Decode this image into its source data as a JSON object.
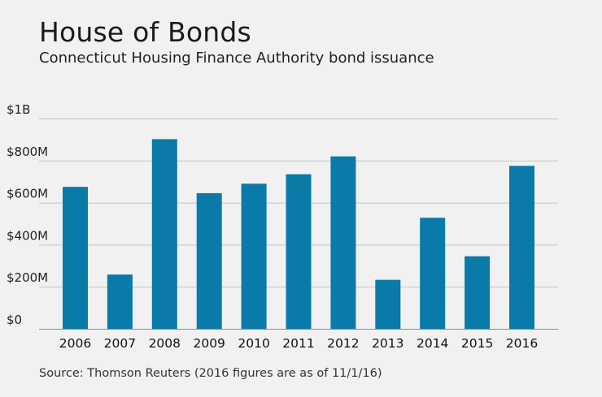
{
  "title": "House of Bonds",
  "subtitle": "Connecticut Housing Finance Authority bond issuance",
  "source": "Source: Thomson Reuters (2016 figures are as of 11/1/16)",
  "colors": {
    "bar": "#0a7aa8",
    "grid": "#c4c6c4",
    "axis": "#8a8c8a",
    "background": "#f0f1f0"
  },
  "chart_data": {
    "type": "bar",
    "categories": [
      "2006",
      "2007",
      "2008",
      "2009",
      "2010",
      "2011",
      "2012",
      "2013",
      "2014",
      "2015",
      "2016"
    ],
    "values": [
      675,
      258,
      902,
      645,
      690,
      735,
      820,
      233,
      528,
      345,
      775
    ],
    "unit": "millions of dollars",
    "ylim": [
      0,
      1000
    ],
    "yticks": [
      {
        "value": 0,
        "label": "$0"
      },
      {
        "value": 200,
        "label": "$200M"
      },
      {
        "value": 400,
        "label": "$400M"
      },
      {
        "value": 600,
        "label": "$600M"
      },
      {
        "value": 800,
        "label": "$800M"
      },
      {
        "value": 1000,
        "label": "$1B"
      }
    ],
    "grid": true,
    "legend": "none"
  }
}
